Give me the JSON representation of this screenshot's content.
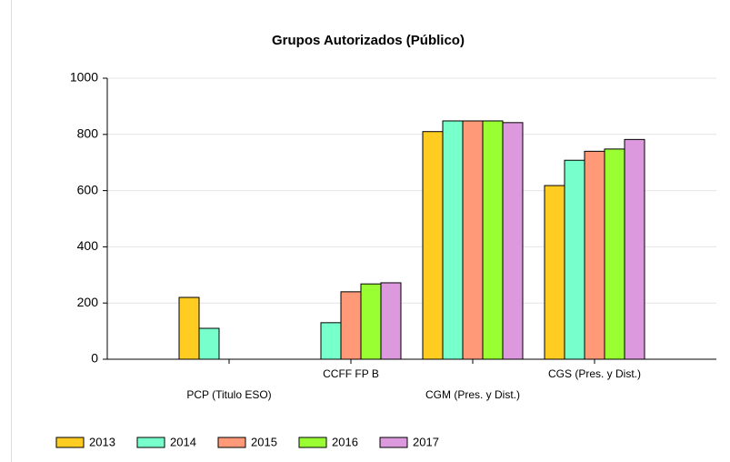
{
  "chart_data": {
    "type": "bar",
    "title": "Grupos Autorizados (Público)",
    "categories": [
      "PCP (Titulo ESO)",
      "CCFF FP B",
      "CGM (Pres. y Dist.)",
      "CGS (Pres. y Dist.)"
    ],
    "series": [
      {
        "name": "2013",
        "color": "#ffcc22",
        "values": [
          220,
          null,
          810,
          618
        ]
      },
      {
        "name": "2014",
        "color": "#77ffcc",
        "values": [
          110,
          130,
          848,
          708
        ]
      },
      {
        "name": "2015",
        "color": "#ff9977",
        "values": [
          null,
          240,
          848,
          740
        ]
      },
      {
        "name": "2016",
        "color": "#99ff33",
        "values": [
          null,
          268,
          848,
          748
        ]
      },
      {
        "name": "2017",
        "color": "#dd99dd",
        "values": [
          null,
          272,
          842,
          782
        ]
      }
    ],
    "ylim": [
      0,
      1000
    ],
    "yticks": [
      0,
      200,
      400,
      600,
      800,
      1000
    ],
    "grid": true
  }
}
